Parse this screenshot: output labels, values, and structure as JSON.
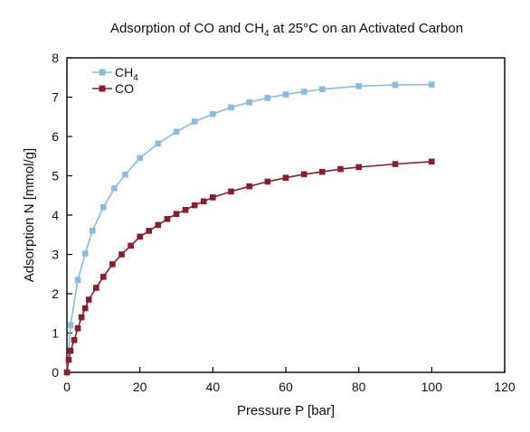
{
  "chart_data": {
    "type": "line",
    "title": "Adsorption of CO and CH",
    "title_sub": "4",
    "title_end": " at 25°C on an Activated Carbon",
    "xlabel": "Pressure P [bar]",
    "ylabel": "Adsorption N [mmol/g]",
    "xlim": [
      0,
      120
    ],
    "ylim": [
      0,
      8
    ],
    "xticks": [
      0,
      20,
      40,
      60,
      80,
      100,
      120
    ],
    "yticks": [
      0,
      1,
      2,
      3,
      4,
      5,
      6,
      7,
      8
    ],
    "grid": false,
    "legend_position": "top-left",
    "series": [
      {
        "name": "CH",
        "name_sub": "4",
        "color": "#87bde3",
        "marker": "square",
        "x": [
          0,
          1,
          3,
          5,
          7,
          10,
          13,
          16,
          20,
          25,
          30,
          35,
          40,
          45,
          50,
          55,
          60,
          65,
          70,
          80,
          90,
          100
        ],
        "y": [
          0,
          1.2,
          2.35,
          3.02,
          3.6,
          4.2,
          4.68,
          5.03,
          5.45,
          5.82,
          6.12,
          6.38,
          6.57,
          6.74,
          6.87,
          6.98,
          7.07,
          7.14,
          7.2,
          7.28,
          7.31,
          7.32
        ]
      },
      {
        "name": "CO",
        "color": "#8b1e2c",
        "marker": "square",
        "x": [
          0,
          0.5,
          1,
          2,
          3,
          4,
          5,
          6,
          8,
          10,
          12.5,
          15,
          17.5,
          20,
          22.5,
          25,
          27.5,
          30,
          32.5,
          35,
          37.5,
          40,
          45,
          50,
          55,
          60,
          65,
          70,
          75,
          80,
          90,
          100
        ],
        "y": [
          0,
          0.32,
          0.55,
          0.82,
          1.12,
          1.4,
          1.63,
          1.85,
          2.15,
          2.43,
          2.75,
          3.0,
          3.22,
          3.45,
          3.6,
          3.75,
          3.9,
          4.03,
          4.13,
          4.25,
          4.35,
          4.45,
          4.6,
          4.73,
          4.85,
          4.95,
          5.04,
          5.1,
          5.17,
          5.22,
          5.3,
          5.36
        ]
      }
    ]
  }
}
